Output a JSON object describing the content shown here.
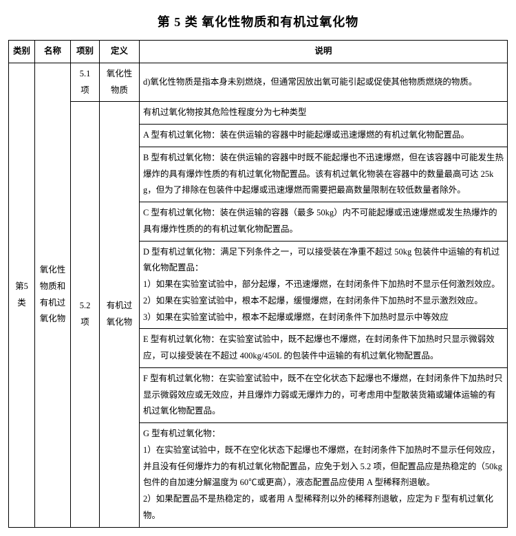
{
  "title": "第 5 类 氧化性物质和有机过氧化物",
  "headers": {
    "category": "类别",
    "name": "名称",
    "item": "项别",
    "definition": "定义",
    "description": "说明"
  },
  "category": "第5类",
  "name": "氧化性物质和有机过氧化物",
  "row51": {
    "item": "5.1 项",
    "definition": "氧化性物质",
    "desc": "d)氧化性物质是指本身未别燃烧，但通常因放出氧可能引起或促使其他物质燃烧的物质。"
  },
  "row52": {
    "item": "5.2 项",
    "definition": "有机过氧化物",
    "cells": {
      "c0": "有机过氧化物按其危险性程度分为七种类型",
      "c1": "A 型有机过氧化物：装在供运输的容器中时能起爆或迅速爆燃的有机过氧化物配置品。",
      "c2": "B 型有机过氧化物：装在供运输的容器中时既不能起爆也不迅速爆燃，但在该容器中可能发生热爆炸的具有爆炸性质的有机过氧化物配置品。该有机过氧化物装在容器中的数量最高可达 25kg，但为了排除在包装件中起爆或迅速爆燃而需要把最高数量限制在较低数量者除外。",
      "c3": "C 型有机过氧化物：装在供运输的容器（最多 50kg）内不可能起爆或迅速爆燃或发生热爆炸的具有爆炸性质的的有机过氧化物配置品。",
      "c4": "D 型有机过氧化物：满足下列条件之一，可以接受装在净重不超过 50kg 包装件中运输的有机过氧化物配置品：\n1）如果在实验室试验中，部分起爆，不迅速爆燃，在封闭条件下加热时不显示任何激烈效应。\n2）如果在实验室试验中，根本不起爆，缓慢爆燃，在封闭条件下加热时不显示激烈效应。\n3）如果在实验室试验中，根本不起爆或爆燃，在封闭条件下加热时显示中等效应",
      "c5": "E 型有机过氧化物：在实验室试验中，既不起爆也不爆燃，在封闭条件下加热时只显示微弱效应，可以接受装在不超过 400kg/450L 的包装件中运输的有机过氧化物配置品。",
      "c6": "F 型有机过氧化物：在实验室试验中，既不在空化状态下起爆也不爆燃，在封闭条件下加热时只显示微弱效应或无效应，并且爆炸力弱或无爆炸力的，可考虑用中型散装货箱或罐体运输的有机过氧化物配置品。",
      "c7": "G 型有机过氧化物：\n1）在实验室试验中，既不在空化状态下起爆也不爆燃，在封闭条件下加热时不显示任何效应，并且没有任何爆炸力的有机过氧化物配置品，应免于划入 5.2 项，但配置品应是热稳定的（50kg 包件的自加速分解温度为 60℃或更高），液态配置品应使用 A 型稀释剂退敏。\n2）如果配置品不是热稳定的，或者用 A 型稀释剂以外的稀释剂退敏，应定为 F 型有机过氧化物。"
    }
  },
  "colors": {
    "border": "#000000",
    "bg": "#ffffff",
    "text": "#000000"
  },
  "typography": {
    "title_fontsize_pt": 14,
    "body_fontsize_pt": 9,
    "line_height": 1.9,
    "font_family": "SimSun"
  }
}
